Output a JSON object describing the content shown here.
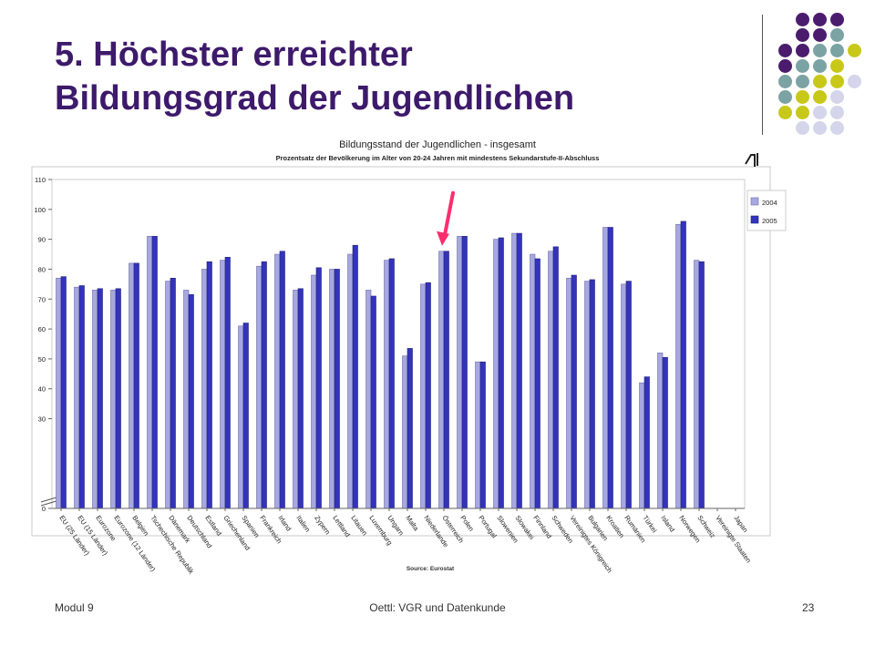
{
  "slide": {
    "title_line1": "5. Höchster erreichter",
    "title_line2": "Bildungsgrad der Jugendlichen"
  },
  "footer": {
    "left": "Modul 9",
    "center": "Oettl: VGR und Datenkunde",
    "page": "23"
  },
  "colors": {
    "title": "#3d1a6b",
    "series_2004": "#a8a8e0",
    "series_2005": "#3333bb",
    "arrow": "#ff2d6e",
    "dot_purple": "#4b1c6e",
    "dot_teal": "#7ba3a3",
    "dot_olive": "#c8c818",
    "dot_lavender": "#d4d4ea"
  },
  "chart_data": {
    "type": "bar",
    "title": "Bildungsstand der Jugendlichen - insgesamt",
    "subtitle": "Prozentsatz der Bevölkerung im Alter von 20-24 Jahren mit mindestens Sekundarstufe-II-Abschluss",
    "source": "Source: Eurostat",
    "ylim": [
      0,
      110
    ],
    "yticks": [
      "0",
      "30",
      "40",
      "50",
      "60",
      "70",
      "80",
      "90",
      "100",
      "110"
    ],
    "axis_break": true,
    "legend_position": "top-right",
    "grid": false,
    "categories": [
      "EU (25 Länder)",
      "EU (15 Länder)",
      "Eurozone",
      "Eurozone (12 Länder)",
      "Belgien",
      "Tschechische Republik",
      "Dänemark",
      "Deutschland",
      "Estland",
      "Griechenland",
      "Spanien",
      "Frankreich",
      "Irland",
      "Italien",
      "Zypern",
      "Lettland",
      "Litauen",
      "Luxemburg",
      "Ungarn",
      "Malta",
      "Niederlande",
      "Österreich",
      "Polen",
      "Portugal",
      "Slowenien",
      "Slowakei",
      "Finnland",
      "Schweden",
      "Vereinigtes Königreich",
      "Bulgarien",
      "Kroatien",
      "Rumänien",
      "Türkei",
      "Island",
      "Norwegen",
      "Schweiz",
      "Vereinigte Staaten",
      "Japan"
    ],
    "series": [
      {
        "name": "2004",
        "values": [
          77,
          74,
          73,
          73,
          82,
          91,
          76,
          73,
          80,
          83,
          61,
          81,
          85,
          73,
          78,
          80,
          85,
          73,
          83,
          51,
          75,
          86,
          91,
          49,
          90,
          92,
          85,
          86,
          77,
          76,
          94,
          75,
          42,
          52,
          95,
          83,
          0,
          0
        ]
      },
      {
        "name": "2005",
        "values": [
          77.5,
          74.5,
          73.5,
          73.5,
          82,
          91,
          77,
          71.5,
          82.5,
          84,
          62,
          82.5,
          86,
          73.5,
          80.5,
          80,
          88,
          71,
          83.5,
          53.5,
          75.5,
          86,
          91,
          49,
          90.5,
          92,
          83.5,
          87.5,
          78,
          76.5,
          94,
          76,
          44,
          50.5,
          96,
          82.5,
          0,
          0
        ]
      }
    ],
    "highlight_category": "Österreich"
  }
}
